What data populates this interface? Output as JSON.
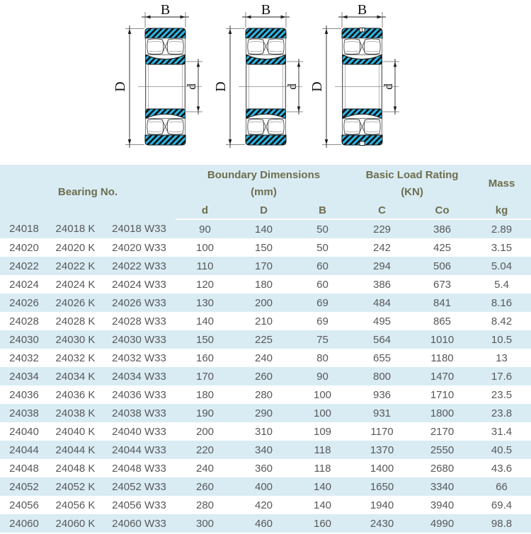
{
  "diagram": {
    "width_label": "B",
    "outer_diameter_label": "D",
    "bore_label": "d",
    "bearing_fill": "#2eb5e4",
    "line_color": "#1a1a1a"
  },
  "table": {
    "header": {
      "bearing_no": "Bearing No.",
      "boundary_group_line1": "Boundary Dimensions",
      "boundary_group_line2": "(mm)",
      "load_group_line1": "Basic Load Rating",
      "load_group_line2": "(KN)",
      "mass": "Mass",
      "columns": [
        "d",
        "D",
        "B",
        "C",
        "Co",
        "kg"
      ]
    },
    "rows": [
      [
        "24018",
        "24018 K",
        "24018 W33",
        "90",
        "140",
        "50",
        "229",
        "386",
        "2.89"
      ],
      [
        "24020",
        "24020 K",
        "24020 W33",
        "100",
        "150",
        "50",
        "242",
        "425",
        "3.15"
      ],
      [
        "24022",
        "24022 K",
        "24022 W33",
        "110",
        "170",
        "60",
        "294",
        "506",
        "5.04"
      ],
      [
        "24024",
        "24024 K",
        "24024 W33",
        "120",
        "180",
        "60",
        "386",
        "673",
        "5.4"
      ],
      [
        "24026",
        "24026 K",
        "24026 W33",
        "130",
        "200",
        "69",
        "484",
        "841",
        "8.16"
      ],
      [
        "24028",
        "24028 K",
        "24028 W33",
        "140",
        "210",
        "69",
        "495",
        "865",
        "8.42"
      ],
      [
        "24030",
        "24030 K",
        "24030 W33",
        "150",
        "225",
        "75",
        "564",
        "1010",
        "10.5"
      ],
      [
        "24032",
        "24032 K",
        "24032 W33",
        "160",
        "240",
        "80",
        "655",
        "1180",
        "13"
      ],
      [
        "24034",
        "24034 K",
        "24034 W33",
        "170",
        "260",
        "90",
        "800",
        "1470",
        "17.6"
      ],
      [
        "24036",
        "24036 K",
        "24036 W33",
        "180",
        "280",
        "100",
        "936",
        "1710",
        "23.5"
      ],
      [
        "24038",
        "24038 K",
        "24038 W33",
        "190",
        "290",
        "100",
        "931",
        "1800",
        "23.8"
      ],
      [
        "24040",
        "24040 K",
        "24040 W33",
        "200",
        "310",
        "109",
        "1170",
        "2170",
        "31.4"
      ],
      [
        "24044",
        "24044 K",
        "24044 W33",
        "220",
        "340",
        "118",
        "1370",
        "2550",
        "40.5"
      ],
      [
        "24048",
        "24048 K",
        "24048 W33",
        "240",
        "360",
        "118",
        "1400",
        "2680",
        "43.6"
      ],
      [
        "24052",
        "24052 K",
        "24052 W33",
        "260",
        "400",
        "140",
        "1650",
        "3340",
        "66"
      ],
      [
        "24056",
        "24056 K",
        "24056 W33",
        "280",
        "420",
        "140",
        "1940",
        "3940",
        "69.4"
      ],
      [
        "24060",
        "24060 K",
        "24060 W33",
        "300",
        "460",
        "160",
        "2430",
        "4990",
        "98.8"
      ]
    ]
  },
  "colors": {
    "header_bg": "#d9ecf4",
    "row_alt_bg": "#d9ecf4",
    "header_text": "#6e6e4e",
    "data_text": "#58585a",
    "bearing_cyan": "#2eb5e4"
  }
}
